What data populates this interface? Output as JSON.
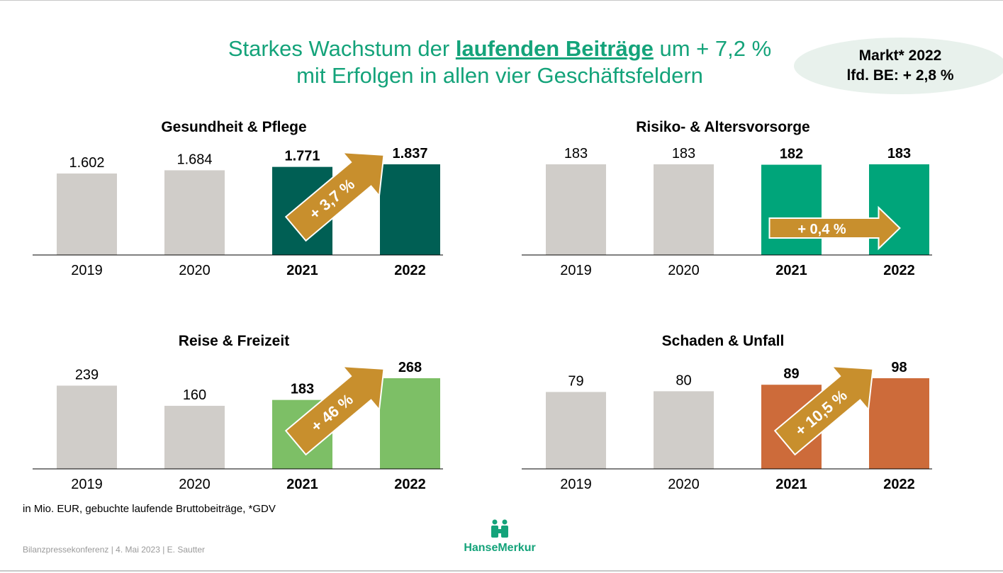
{
  "title": {
    "line1_pre": "Starkes Wachstum der ",
    "line1_highlight": "laufenden Beiträge",
    "line1_post": " um + 7,2 %",
    "line2": "mit Erfolgen in allen vier Geschäftsfeldern"
  },
  "market": {
    "line1": "Markt* 2022",
    "line2": "lfd. BE: + 2,8 %"
  },
  "footnote": "in Mio. EUR, gebuchte laufende Bruttobeiträge, *GDV",
  "footer_source": "Bilanzpressekonferenz | 4. Mai 2023 | E. Sautter",
  "logo": {
    "text": "HanseMerkur",
    "color": "#14a37a"
  },
  "colors": {
    "gray": "#d0cdc9",
    "arrow": "#c88f2d"
  },
  "chart_data": [
    {
      "type": "bar",
      "title": "Gesundheit & Pflege",
      "categories": [
        "2019",
        "2020",
        "2021",
        "2022"
      ],
      "values": [
        1602,
        1684,
        1771,
        1837
      ],
      "labels": [
        "1.602",
        "1.684",
        "1.771",
        "1.837"
      ],
      "highlight_color": "#005f54",
      "growth": "+ 3,7 %",
      "arrow": "diagonal"
    },
    {
      "type": "bar",
      "title": "Risiko- & Altersvorsorge",
      "categories": [
        "2019",
        "2020",
        "2021",
        "2022"
      ],
      "values": [
        183,
        183,
        182,
        183
      ],
      "labels": [
        "183",
        "183",
        "182",
        "183"
      ],
      "highlight_color": "#00a57a",
      "growth": "+ 0,4 %",
      "arrow": "horizontal"
    },
    {
      "type": "bar",
      "title": "Reise & Freizeit",
      "categories": [
        "2019",
        "2020",
        "2021",
        "2022"
      ],
      "values": [
        239,
        160,
        183,
        268
      ],
      "labels": [
        "239",
        "160",
        "183",
        "268"
      ],
      "highlight_color": "#7dbf66",
      "growth": "+ 46 %",
      "arrow": "diagonal"
    },
    {
      "type": "bar",
      "title": "Schaden & Unfall",
      "categories": [
        "2019",
        "2020",
        "2021",
        "2022"
      ],
      "values": [
        79,
        80,
        89,
        98
      ],
      "labels": [
        "79",
        "80",
        "89",
        "98"
      ],
      "highlight_color": "#cd6b3a",
      "growth": "+ 10,5 %",
      "arrow": "diagonal"
    }
  ]
}
